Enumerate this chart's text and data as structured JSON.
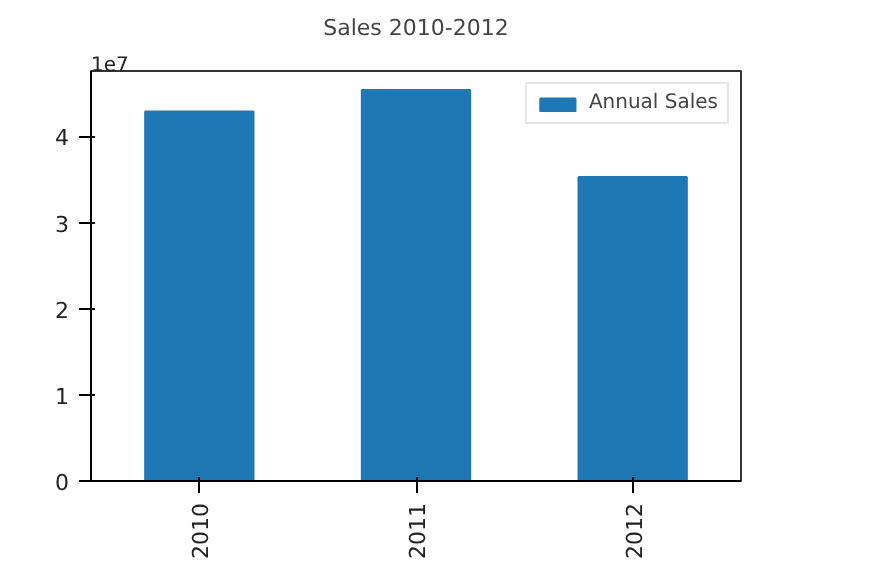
{
  "chart_data": {
    "type": "bar",
    "title": "Sales 2010-2012",
    "categories": [
      "2010",
      "2011",
      "2012"
    ],
    "series": [
      {
        "name": "Annual Sales",
        "color": "#1f77b4",
        "values": [
          4.29,
          4.54,
          3.53
        ]
      }
    ],
    "ylim": [
      0,
      4.76
    ],
    "yticks": [
      0,
      1,
      2,
      3,
      4
    ],
    "annotations": [
      "1e7"
    ],
    "legend": "top right",
    "grid": false
  }
}
